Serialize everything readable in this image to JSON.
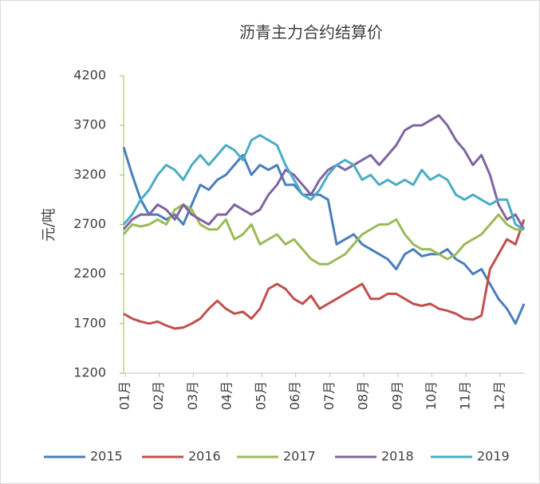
{
  "chart_data": {
    "type": "line",
    "title": "沥青主力合约结算价",
    "y_label": "元/吨",
    "categories": [
      "01月",
      null,
      null,
      null,
      "02月",
      null,
      null,
      null,
      "03月",
      null,
      null,
      null,
      "04月",
      null,
      null,
      null,
      "05月",
      null,
      null,
      null,
      "06月",
      null,
      null,
      null,
      "07月",
      null,
      null,
      null,
      "08月",
      null,
      null,
      null,
      "09月",
      null,
      null,
      null,
      "10月",
      null,
      null,
      null,
      "11月",
      null,
      null,
      null,
      "12月",
      null,
      null,
      null
    ],
    "ylim": [
      1200,
      4200
    ],
    "yticks": [
      1200,
      1700,
      2200,
      2700,
      3200,
      3700,
      4200
    ],
    "series": [
      {
        "name": "2015",
        "color": "#4a7ebb",
        "values": [
          3480,
          3200,
          2950,
          2800,
          2800,
          2750,
          2800,
          2700,
          2900,
          3100,
          3050,
          3150,
          3200,
          3300,
          3400,
          3200,
          3300,
          3250,
          3300,
          3100,
          3100,
          3000,
          3000,
          3000,
          2950,
          2500,
          2550,
          2600,
          2500,
          2450,
          2400,
          2350,
          2250,
          2400,
          2450,
          2380,
          2400,
          2400,
          2450,
          2350,
          2300,
          2200,
          2250,
          2100,
          1950,
          1850,
          1700,
          1900
        ]
      },
      {
        "name": "2016",
        "color": "#c0504d",
        "values": [
          1800,
          1750,
          1720,
          1700,
          1720,
          1680,
          1650,
          1660,
          1700,
          1750,
          1850,
          1930,
          1850,
          1800,
          1820,
          1750,
          1850,
          2050,
          2100,
          2050,
          1950,
          1900,
          1980,
          1850,
          1900,
          1950,
          2000,
          2050,
          2100,
          1950,
          1950,
          2000,
          2000,
          1950,
          1900,
          1880,
          1900,
          1850,
          1830,
          1800,
          1750,
          1740,
          1780,
          2250,
          2400,
          2550,
          2500,
          2750
        ]
      },
      {
        "name": "2017",
        "color": "#9bbb59",
        "values": [
          2600,
          2700,
          2680,
          2700,
          2750,
          2700,
          2850,
          2900,
          2850,
          2700,
          2650,
          2650,
          2750,
          2550,
          2600,
          2700,
          2500,
          2550,
          2600,
          2500,
          2550,
          2450,
          2350,
          2300,
          2300,
          2350,
          2400,
          2500,
          2600,
          2650,
          2700,
          2700,
          2750,
          2600,
          2500,
          2450,
          2450,
          2400,
          2350,
          2400,
          2500,
          2550,
          2600,
          2700,
          2800,
          2700,
          2650,
          2650
        ]
      },
      {
        "name": "2018",
        "color": "#8064a2",
        "values": [
          2650,
          2750,
          2800,
          2800,
          2900,
          2850,
          2750,
          2900,
          2800,
          2750,
          2700,
          2800,
          2800,
          2900,
          2850,
          2800,
          2850,
          3000,
          3100,
          3250,
          3200,
          3100,
          3000,
          3150,
          3250,
          3300,
          3250,
          3300,
          3350,
          3400,
          3300,
          3400,
          3500,
          3650,
          3700,
          3700,
          3750,
          3800,
          3700,
          3550,
          3450,
          3300,
          3400,
          3200,
          2900,
          2750,
          2800,
          2650
        ]
      },
      {
        "name": "2019",
        "color": "#4bacc6",
        "values": [
          2700,
          2800,
          2950,
          3050,
          3200,
          3300,
          3250,
          3150,
          3300,
          3400,
          3300,
          3400,
          3500,
          3450,
          3350,
          3550,
          3600,
          3550,
          3500,
          3300,
          3150,
          3000,
          2950,
          3050,
          3200,
          3300,
          3350,
          3300,
          3150,
          3200,
          3100,
          3150,
          3100,
          3150,
          3100,
          3250,
          3150,
          3200,
          3150,
          3000,
          2950,
          3000,
          2950,
          2900,
          2950,
          2950,
          2700,
          2650
        ]
      }
    ]
  }
}
